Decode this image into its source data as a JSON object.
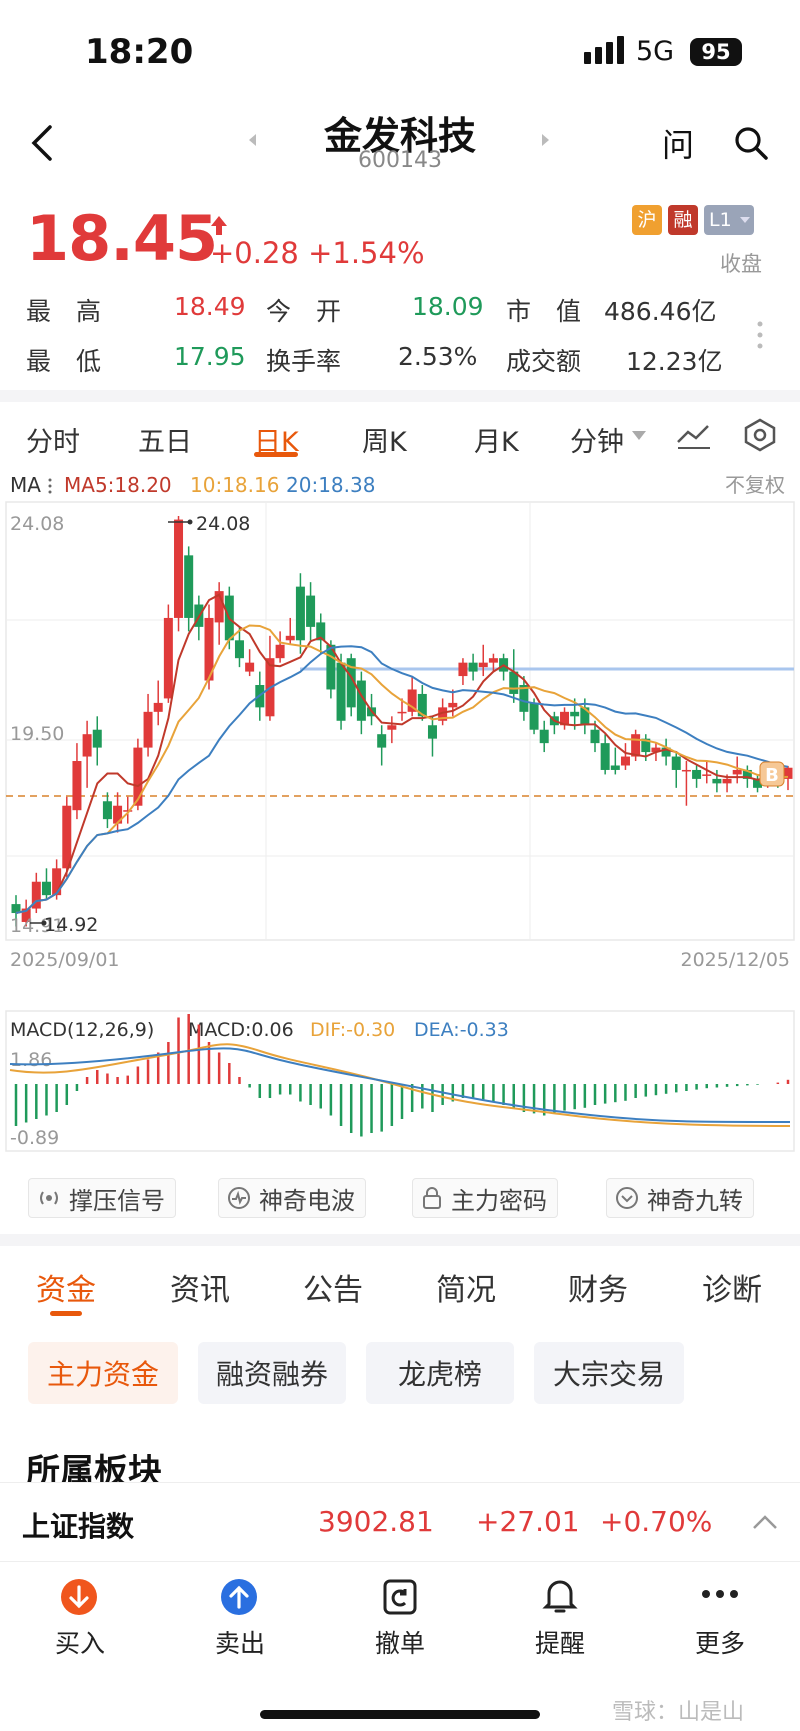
{
  "status_bar": {
    "time": "18:20",
    "network": "5G",
    "battery": "95"
  },
  "header": {
    "name": "金发科技",
    "code": "600143"
  },
  "quote": {
    "price": "18.45",
    "change": "+0.28",
    "change_pct": "+1.54%",
    "tags": [
      "沪",
      "融",
      "L1"
    ],
    "market_status": "收盘",
    "stats": {
      "high_label": "最　高",
      "high": "18.49",
      "open_label": "今　开",
      "open": "18.09",
      "mcap_label": "市　值",
      "mcap": "486.46亿",
      "low_label": "最　低",
      "low": "17.95",
      "turnover_label": "换手率",
      "turnover": "2.53%",
      "amount_label": "成交额",
      "amount": "12.23亿"
    }
  },
  "chart_tabs": [
    "分时",
    "五日",
    "日K",
    "周K",
    "月K",
    "分钟"
  ],
  "chart_tabs_active": "日K",
  "ma_legend": {
    "label": "MA",
    "ma5": "MA5:18.20",
    "ma10": "10:18.16",
    "ma20": "20:18.38",
    "adjust": "不复权"
  },
  "candle_axis": {
    "top": "24.08",
    "mid": "19.50",
    "bottom": "14.91",
    "max_marker": "24.08",
    "min_marker": "14.92",
    "start_date": "2025/09/01",
    "end_date": "2025/12/05",
    "b_marker": "B"
  },
  "macd_legend": {
    "label": "MACD(12,26,9)",
    "macd": "MACD:0.06",
    "dif": "DIF:-0.30",
    "dea": "DEA:-0.33",
    "axis_top": "1.86",
    "axis_bottom": "-0.89"
  },
  "tool_pills": [
    "撑压信号",
    "神奇电波",
    "主力密码",
    "神奇九转"
  ],
  "info_tabs": [
    "资金",
    "资讯",
    "公告",
    "简况",
    "财务",
    "诊断"
  ],
  "info_tabs_active": "资金",
  "sub_tabs": [
    "主力资金",
    "融资融券",
    "龙虎榜",
    "大宗交易"
  ],
  "section_title": "所属板块",
  "index_bar": {
    "name": "上证指数",
    "value": "3902.81",
    "change": "+27.01",
    "pct": "+0.70%"
  },
  "bottom_nav": [
    "买入",
    "卖出",
    "撤单",
    "提醒",
    "更多"
  ],
  "watermark": "雪球：山是山",
  "colors": {
    "up": "#e03a3a",
    "down": "#1f9a5a",
    "accent": "#e8580c",
    "ma5": "#c0392b",
    "ma10": "#e8a33a",
    "ma20": "#3d7fc0"
  },
  "chart_data": {
    "type": "candlestick",
    "y_range": [
      14.91,
      24.08
    ],
    "date_range": [
      "2025/09/01",
      "2025/12/05"
    ],
    "candles": [
      [
        15.4,
        15.2,
        15.6,
        14.9
      ],
      [
        15.0,
        15.3,
        15.5,
        14.9
      ],
      [
        15.3,
        15.9,
        16.1,
        15.2
      ],
      [
        15.9,
        15.6,
        16.2,
        15.5
      ],
      [
        15.6,
        16.2,
        16.4,
        15.5
      ],
      [
        16.2,
        17.6,
        17.8,
        16.0
      ],
      [
        17.5,
        18.6,
        19.0,
        17.3
      ],
      [
        18.7,
        19.2,
        19.5,
        18.0
      ],
      [
        19.3,
        18.9,
        19.6,
        18.5
      ],
      [
        17.7,
        17.3,
        17.9,
        17.1
      ],
      [
        17.2,
        17.6,
        17.9,
        17.0
      ],
      [
        17.5,
        17.5,
        17.8,
        17.2
      ],
      [
        17.6,
        18.9,
        19.1,
        17.5
      ],
      [
        18.9,
        19.7,
        20.1,
        18.7
      ],
      [
        19.7,
        19.9,
        20.4,
        19.4
      ],
      [
        20.0,
        21.8,
        22.1,
        19.9
      ],
      [
        21.8,
        24.0,
        24.08,
        21.5
      ],
      [
        23.2,
        21.8,
        23.4,
        21.5
      ],
      [
        22.1,
        21.6,
        22.3,
        21.3
      ],
      [
        20.4,
        21.8,
        22.1,
        20.2
      ],
      [
        21.7,
        22.4,
        22.6,
        21.2
      ],
      [
        22.3,
        21.3,
        22.5,
        21.1
      ],
      [
        21.3,
        20.9,
        21.6,
        20.7
      ],
      [
        20.6,
        20.8,
        21.1,
        20.5
      ],
      [
        20.3,
        19.8,
        20.6,
        19.5
      ],
      [
        19.6,
        20.9,
        21.4,
        19.5
      ],
      [
        20.9,
        21.2,
        21.5,
        20.8
      ],
      [
        21.3,
        21.4,
        21.8,
        21.2
      ],
      [
        22.5,
        21.3,
        22.8,
        21.0
      ],
      [
        22.3,
        21.6,
        22.6,
        21.3
      ],
      [
        21.7,
        21.3,
        21.9,
        21.0
      ],
      [
        21.2,
        20.2,
        21.3,
        20.0
      ],
      [
        20.8,
        19.5,
        21.0,
        19.3
      ],
      [
        20.9,
        19.8,
        21.0,
        19.6
      ],
      [
        20.4,
        19.5,
        20.6,
        19.2
      ],
      [
        19.8,
        19.6,
        20.1,
        19.4
      ],
      [
        19.2,
        18.9,
        19.4,
        18.5
      ],
      [
        19.3,
        19.4,
        19.6,
        19.0
      ],
      [
        19.7,
        19.7,
        20.0,
        19.5
      ],
      [
        19.7,
        20.2,
        20.5,
        19.6
      ],
      [
        20.1,
        19.6,
        20.3,
        19.5
      ],
      [
        19.4,
        19.1,
        19.6,
        18.7
      ],
      [
        19.5,
        19.8,
        20.0,
        19.4
      ],
      [
        19.8,
        19.9,
        20.2,
        19.6
      ],
      [
        20.5,
        20.8,
        20.9,
        20.3
      ],
      [
        20.8,
        20.6,
        21.0,
        20.4
      ],
      [
        20.7,
        20.8,
        21.2,
        20.5
      ],
      [
        20.8,
        20.9,
        21.0,
        20.6
      ],
      [
        20.9,
        20.6,
        21.0,
        20.4
      ],
      [
        20.6,
        20.1,
        21.1,
        19.9
      ],
      [
        20.3,
        19.7,
        20.5,
        19.5
      ],
      [
        19.9,
        19.3,
        20.0,
        19.2
      ],
      [
        19.3,
        19.0,
        19.5,
        18.8
      ],
      [
        19.6,
        19.4,
        19.7,
        19.2
      ],
      [
        19.4,
        19.7,
        19.8,
        19.3
      ],
      [
        19.7,
        19.6,
        20.0,
        19.3
      ],
      [
        19.8,
        19.4,
        20.0,
        19.2
      ],
      [
        19.3,
        19.0,
        19.5,
        18.8
      ],
      [
        19.0,
        18.4,
        19.2,
        18.3
      ],
      [
        18.5,
        18.4,
        18.9,
        18.3
      ],
      [
        18.5,
        18.7,
        19.0,
        18.4
      ],
      [
        18.7,
        19.2,
        19.3,
        18.6
      ],
      [
        19.1,
        18.8,
        19.2,
        18.6
      ],
      [
        18.8,
        18.9,
        19.0,
        18.6
      ],
      [
        18.9,
        18.7,
        19.1,
        18.5
      ],
      [
        18.7,
        18.4,
        18.8,
        18.0
      ],
      [
        18.4,
        18.4,
        18.6,
        17.6
      ],
      [
        18.4,
        18.2,
        18.5,
        18.0
      ],
      [
        18.3,
        18.3,
        18.6,
        18.1
      ],
      [
        18.2,
        18.1,
        18.4,
        17.9
      ],
      [
        18.1,
        18.2,
        18.3,
        17.9
      ],
      [
        18.3,
        18.4,
        18.7,
        18.1
      ],
      [
        18.4,
        18.2,
        18.5,
        18.0
      ],
      [
        18.2,
        18.0,
        18.3,
        17.9
      ],
      [
        18.1,
        18.4,
        18.5,
        18.0
      ],
      [
        18.3,
        18.2,
        18.4,
        18.0
      ],
      [
        18.2,
        18.45,
        18.49,
        17.95
      ]
    ],
    "macd_hist": [
      -0.6,
      -0.55,
      -0.5,
      -0.45,
      -0.4,
      -0.3,
      -0.1,
      0.1,
      0.2,
      0.15,
      0.1,
      0.12,
      0.25,
      0.35,
      0.45,
      0.6,
      0.95,
      1.0,
      0.85,
      0.6,
      0.45,
      0.3,
      0.1,
      -0.05,
      -0.2,
      -0.2,
      -0.15,
      -0.15,
      -0.25,
      -0.3,
      -0.35,
      -0.45,
      -0.6,
      -0.7,
      -0.75,
      -0.7,
      -0.68,
      -0.6,
      -0.5,
      -0.4,
      -0.35,
      -0.4,
      -0.3,
      -0.25,
      -0.2,
      -0.2,
      -0.22,
      -0.25,
      -0.3,
      -0.35,
      -0.4,
      -0.42,
      -0.45,
      -0.42,
      -0.38,
      -0.36,
      -0.34,
      -0.3,
      -0.28,
      -0.26,
      -0.24,
      -0.2,
      -0.18,
      -0.16,
      -0.14,
      -0.12,
      -0.1,
      -0.08,
      -0.06,
      -0.05,
      -0.04,
      -0.03,
      -0.02,
      -0.01,
      0.0,
      0.02,
      0.06
    ]
  }
}
